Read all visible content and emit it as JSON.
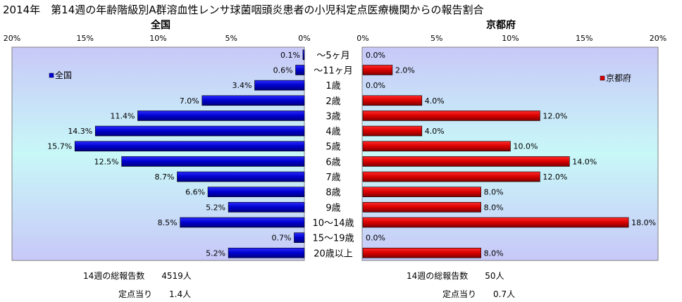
{
  "chart_data": {
    "type": "bar",
    "title": "2014年　第14週の年齢階級別A群溶血性レンサ球菌咽頭炎患者の小児科定点医療機関からの報告割合",
    "categories": [
      "～5ヶ月",
      "～11ヶ月",
      "1歳",
      "2歳",
      "3歳",
      "4歳",
      "5歳",
      "6歳",
      "7歳",
      "8歳",
      "9歳",
      "10～14歳",
      "15～19歳",
      "20歳以上"
    ],
    "left_panel": {
      "heading": "全国",
      "legend": "全国",
      "legend_position": "top-left",
      "xlim": [
        0,
        20
      ],
      "ticks": [
        "20%",
        "15%",
        "10%",
        "5%",
        "0%"
      ],
      "values": [
        0.1,
        0.6,
        3.4,
        7.0,
        11.4,
        14.3,
        15.7,
        12.5,
        8.7,
        6.6,
        5.2,
        8.5,
        0.7,
        5.2
      ],
      "labels": [
        "0.1%",
        "0.6%",
        "3.4%",
        "7.0%",
        "11.4%",
        "14.3%",
        "15.7%",
        "12.5%",
        "8.7%",
        "6.6%",
        "5.2%",
        "8.5%",
        "0.7%",
        "5.2%"
      ],
      "color": "#0000e0"
    },
    "right_panel": {
      "heading": "京都府",
      "legend": "京都府",
      "legend_position": "top-right",
      "xlim": [
        0,
        20
      ],
      "ticks": [
        "0%",
        "5%",
        "10%",
        "15%",
        "20%"
      ],
      "values": [
        0.0,
        2.0,
        0.0,
        4.0,
        12.0,
        4.0,
        10.0,
        14.0,
        12.0,
        8.0,
        8.0,
        18.0,
        0.0,
        8.0
      ],
      "labels": [
        "0.0%",
        "2.0%",
        "0.0%",
        "4.0%",
        "12.0%",
        "4.0%",
        "10.0%",
        "14.0%",
        "12.0%",
        "8.0%",
        "8.0%",
        "18.0%",
        "0.0%",
        "8.0%"
      ],
      "color": "#e00000"
    },
    "grid": false
  },
  "footer": {
    "left_total": "14週の総報告数　　4519人",
    "left_per_site": "定点当り　　1.4人",
    "right_total": "14週の総報告数　　50人",
    "right_per_site": "定点当り　　0.7人"
  }
}
